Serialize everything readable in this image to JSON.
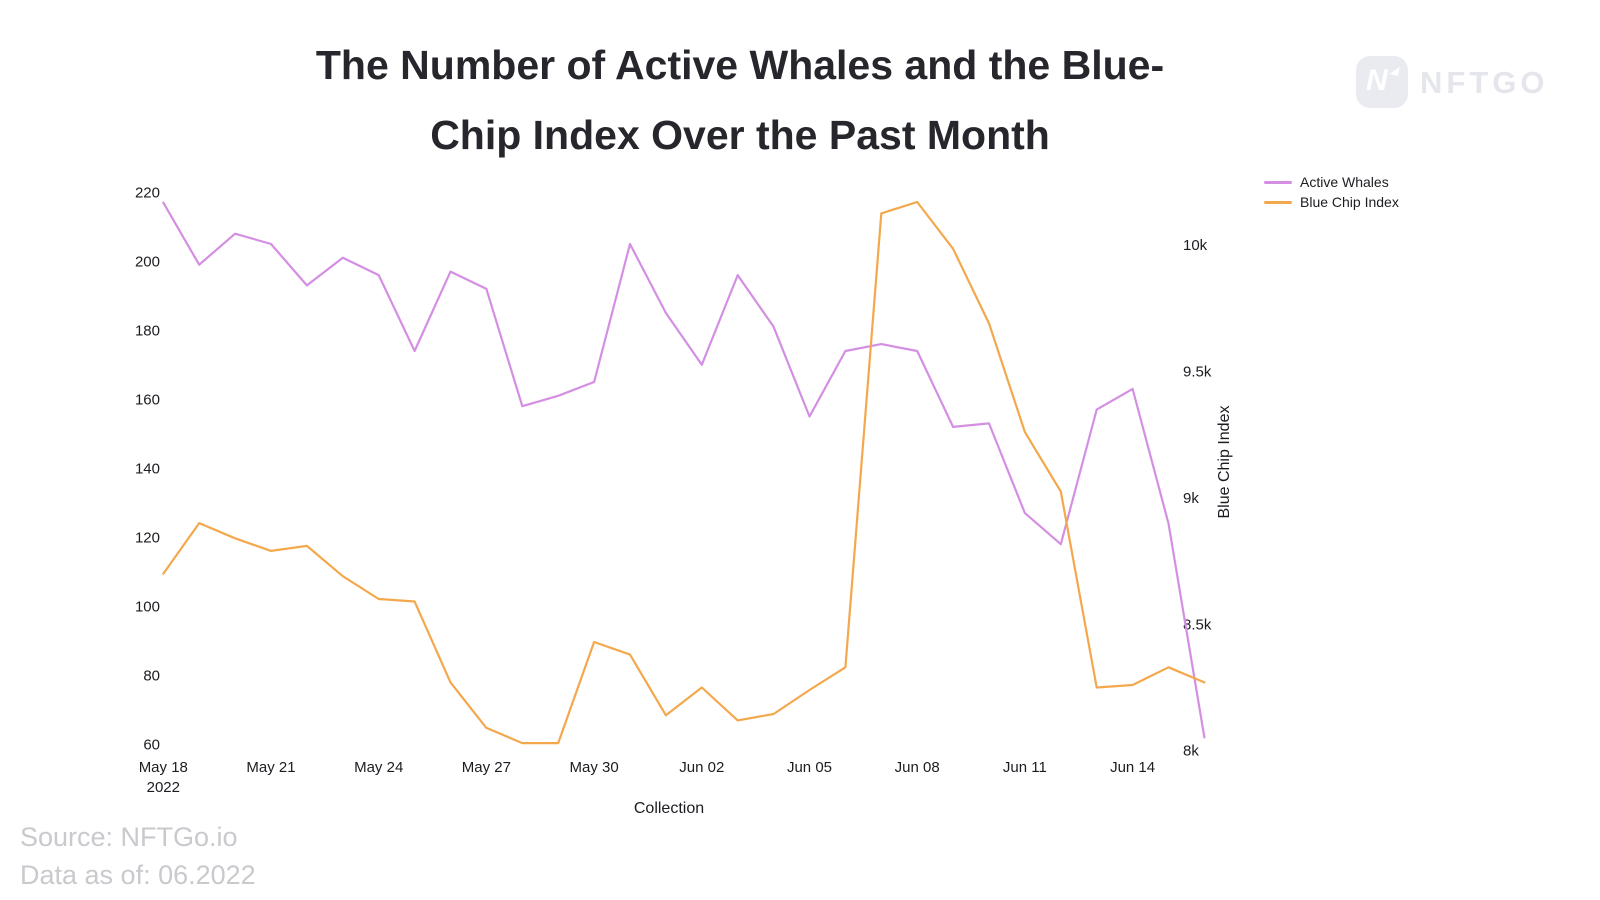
{
  "title": "The Number of Active Whales and the Blue-Chip Index Over the Past Month",
  "title_lines": [
    "The Number of Active Whales and the Blue-",
    "Chip Index Over the Past Month"
  ],
  "logo_text": "NFTGO",
  "logo_n": "N",
  "source_line1": "Source: NFTGo.io",
  "source_line2": "Data as of: 06.2022",
  "legend": [
    {
      "label": "Active Whales",
      "color": "#d48fe3"
    },
    {
      "label": "Blue Chip Index",
      "color": "#f4a84d"
    }
  ],
  "xaxis_title": "Collection",
  "right_axis_title": "Blue Chip Index",
  "chart_data": {
    "type": "line",
    "title": "The Number of Active Whales and the Blue-Chip Index Over the Past Month",
    "xlabel": "Collection",
    "ylabel_left": "",
    "ylabel_right": "Blue Chip Index",
    "grid": false,
    "legend_position": "top-right",
    "x": [
      "May 18",
      "May 19",
      "May 20",
      "May 21",
      "May 22",
      "May 23",
      "May 24",
      "May 25",
      "May 26",
      "May 27",
      "May 28",
      "May 29",
      "May 30",
      "May 31",
      "Jun 01",
      "Jun 02",
      "Jun 03",
      "Jun 04",
      "Jun 05",
      "Jun 06",
      "Jun 07",
      "Jun 08",
      "Jun 09",
      "Jun 10",
      "Jun 11",
      "Jun 12",
      "Jun 13",
      "Jun 14",
      "Jun 15",
      "Jun 16"
    ],
    "x_ticks": [
      {
        "index": 0,
        "label": "May 18",
        "sub": "2022"
      },
      {
        "index": 3,
        "label": "May 21"
      },
      {
        "index": 6,
        "label": "May 24"
      },
      {
        "index": 9,
        "label": "May 27"
      },
      {
        "index": 12,
        "label": "May 30"
      },
      {
        "index": 15,
        "label": "Jun 02"
      },
      {
        "index": 18,
        "label": "Jun 05"
      },
      {
        "index": 21,
        "label": "Jun 08"
      },
      {
        "index": 24,
        "label": "Jun 11"
      },
      {
        "index": 27,
        "label": "Jun 14"
      }
    ],
    "left_axis": {
      "min": 60,
      "max": 220,
      "ticks": [
        220,
        200,
        180,
        160,
        140,
        120,
        100,
        80,
        60
      ]
    },
    "right_axis": {
      "min": 8000,
      "max": 10000,
      "ticks": [
        {
          "label": "10k",
          "value": 10000
        },
        {
          "label": "9.5k",
          "value": 9500
        },
        {
          "label": "9k",
          "value": 9000
        },
        {
          "label": "8.5k",
          "value": 8500
        },
        {
          "label": "8k",
          "value": 8000
        }
      ]
    },
    "series": [
      {
        "name": "Active Whales",
        "axis": "left",
        "color": "#d48fe3",
        "values": [
          217,
          199,
          208,
          205,
          193,
          201,
          196,
          174,
          197,
          192,
          158,
          161,
          165,
          205,
          185,
          170,
          196,
          181,
          155,
          174,
          176,
          174,
          152,
          153,
          127,
          118,
          157,
          163,
          124,
          62
        ]
      },
      {
        "name": "Blue Chip Index",
        "axis": "right",
        "color": "#f4a84d",
        "values": [
          8700,
          8900,
          8840,
          8790,
          8810,
          8690,
          8600,
          8590,
          8270,
          8090,
          8030,
          8030,
          8430,
          8380,
          8140,
          8250,
          8120,
          8145,
          8240,
          8330,
          10125,
          10170,
          9985,
          9690,
          9260,
          9025,
          8250,
          8260,
          8330,
          8270
        ]
      }
    ]
  }
}
